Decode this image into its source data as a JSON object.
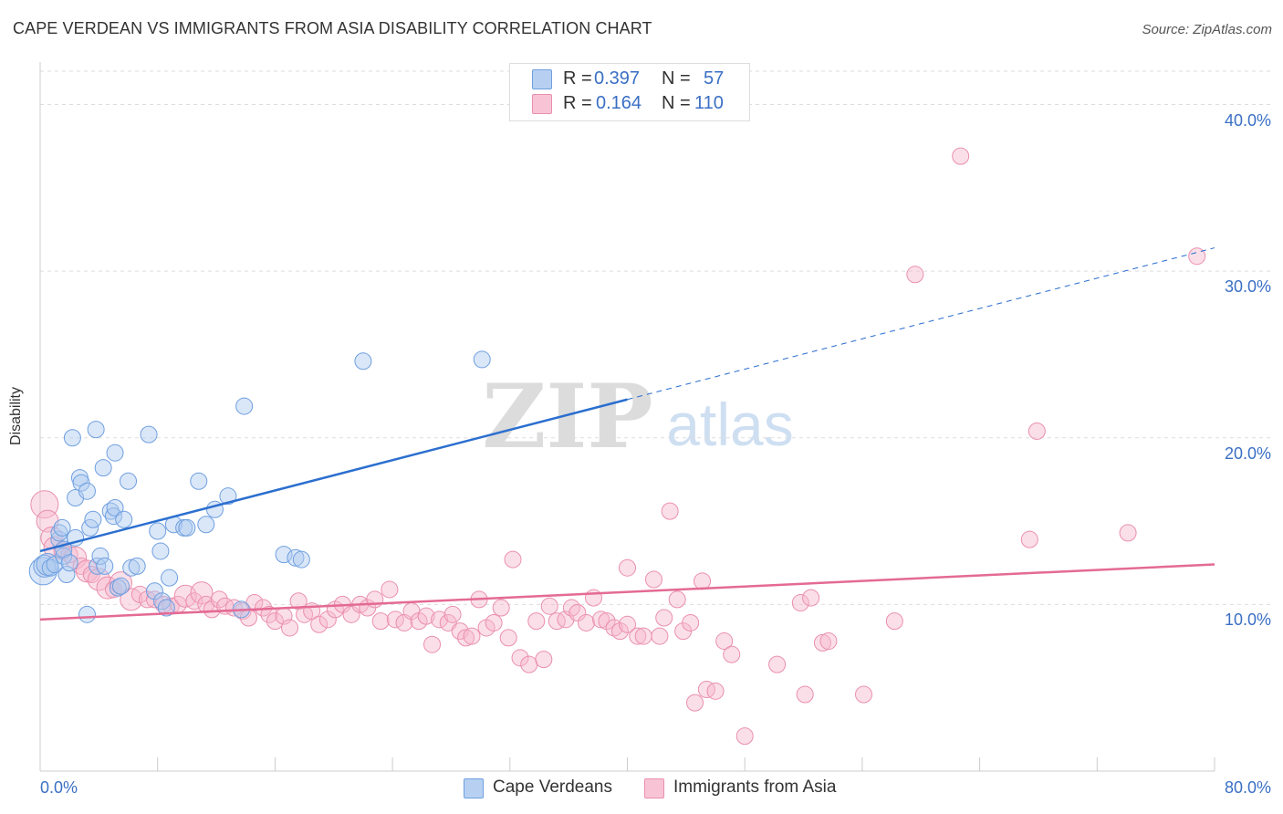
{
  "title": "CAPE VERDEAN VS IMMIGRANTS FROM ASIA DISABILITY CORRELATION CHART",
  "source": "Source: ZipAtlas.com",
  "watermark": {
    "zip": "ZIP",
    "atlas": "atlas"
  },
  "legend": {
    "rows": [
      {
        "r_label": "R =",
        "r_value": "0.397",
        "n_label": "N =",
        "n_value": "57"
      },
      {
        "r_label": "R =",
        "r_value": "0.164",
        "n_label": "N =",
        "n_value": "110"
      }
    ]
  },
  "bottom_legend": [
    "Cape Verdeans",
    "Immigrants from Asia"
  ],
  "x_axis_labels": {
    "left": "0.0%",
    "right": "80.0%"
  },
  "colors": {
    "blue": "#2b6fcf",
    "pink": "#e46a95",
    "blue_fill": "#aec9ef",
    "pink_fill": "#f6b8cc",
    "axis_text": "#3a6fc4"
  },
  "chart_data": {
    "type": "scatter",
    "title": "CAPE VERDEAN VS IMMIGRANTS FROM ASIA DISABILITY CORRELATION CHART",
    "xlabel": "",
    "ylabel": "Disability",
    "xlim": [
      0,
      80
    ],
    "ylim": [
      0,
      42
    ],
    "y_ticks": [
      10,
      20,
      30,
      40
    ],
    "y_tick_labels": [
      "10.0%",
      "20.0%",
      "30.0%",
      "40.0%"
    ],
    "grid": true,
    "legend_position": "top-center",
    "series": [
      {
        "name": "Cape Verdeans",
        "color": "#2b6fcf",
        "r": 0.397,
        "n": 57,
        "trend": {
          "x": [
            0,
            40
          ],
          "y": [
            13.2,
            22.3
          ],
          "dashed_extension": {
            "x": [
              40,
              80
            ],
            "y": [
              22.3,
              31.4
            ]
          }
        },
        "points": [
          [
            0.2,
            12.0,
            3
          ],
          [
            0.3,
            12.3,
            2
          ],
          [
            0.5,
            12.4,
            2
          ],
          [
            0.7,
            12.2,
            1
          ],
          [
            1.0,
            12.4,
            1
          ],
          [
            1.3,
            13.9,
            1
          ],
          [
            1.3,
            14.3,
            1
          ],
          [
            1.6,
            12.9,
            1
          ],
          [
            1.6,
            13.3,
            1
          ],
          [
            1.5,
            14.6,
            1
          ],
          [
            1.8,
            11.8,
            1
          ],
          [
            2.0,
            12.5,
            1
          ],
          [
            2.4,
            14.0,
            1
          ],
          [
            2.2,
            20.0,
            1
          ],
          [
            2.4,
            16.4,
            1
          ],
          [
            2.7,
            17.6,
            1
          ],
          [
            2.8,
            17.3,
            1
          ],
          [
            3.2,
            16.8,
            1
          ],
          [
            3.4,
            14.6,
            1
          ],
          [
            3.2,
            9.4,
            1
          ],
          [
            3.6,
            15.1,
            1
          ],
          [
            3.8,
            20.5,
            1
          ],
          [
            3.9,
            12.3,
            1
          ],
          [
            4.1,
            12.9,
            1
          ],
          [
            4.3,
            18.2,
            1
          ],
          [
            4.4,
            12.3,
            1
          ],
          [
            4.8,
            15.6,
            1
          ],
          [
            5.0,
            15.3,
            1
          ],
          [
            5.1,
            15.8,
            1
          ],
          [
            5.1,
            19.1,
            1
          ],
          [
            5.3,
            11.0,
            1
          ],
          [
            5.5,
            11.1,
            1
          ],
          [
            5.7,
            15.1,
            1
          ],
          [
            6.0,
            17.4,
            1
          ],
          [
            6.2,
            12.2,
            1
          ],
          [
            6.6,
            12.3,
            1
          ],
          [
            7.4,
            20.2,
            1
          ],
          [
            7.8,
            10.8,
            1
          ],
          [
            8.0,
            14.4,
            1
          ],
          [
            8.2,
            13.2,
            1
          ],
          [
            8.3,
            10.2,
            1
          ],
          [
            8.6,
            9.8,
            1
          ],
          [
            8.8,
            11.6,
            1
          ],
          [
            9.1,
            14.8,
            1
          ],
          [
            9.8,
            14.6,
            1
          ],
          [
            10.0,
            14.6,
            1
          ],
          [
            10.8,
            17.4,
            1
          ],
          [
            11.3,
            14.8,
            1
          ],
          [
            11.9,
            15.7,
            1
          ],
          [
            12.8,
            16.5,
            1
          ],
          [
            13.7,
            9.7,
            1
          ],
          [
            13.9,
            21.9,
            1
          ],
          [
            16.6,
            13.0,
            1
          ],
          [
            17.4,
            12.8,
            1
          ],
          [
            17.8,
            12.7,
            1
          ],
          [
            22.0,
            24.6,
            1
          ],
          [
            30.1,
            24.7,
            1
          ]
        ]
      },
      {
        "name": "Immigrants from Asia",
        "color": "#e46a95",
        "r": 0.164,
        "n": 110,
        "trend": {
          "x": [
            0,
            80
          ],
          "y": [
            9.1,
            12.4
          ]
        },
        "points": [
          [
            0.3,
            16.0,
            3
          ],
          [
            0.5,
            15.0,
            2
          ],
          [
            0.8,
            14.0,
            2
          ],
          [
            1.0,
            13.4,
            2
          ],
          [
            1.5,
            13.2,
            1
          ],
          [
            2.0,
            13.0,
            1
          ],
          [
            2.4,
            12.8,
            2
          ],
          [
            2.8,
            12.3,
            1
          ],
          [
            3.2,
            12.0,
            2
          ],
          [
            3.5,
            11.8,
            1
          ],
          [
            4.0,
            11.5,
            2
          ],
          [
            4.6,
            11.0,
            2
          ],
          [
            5.0,
            10.9,
            1
          ],
          [
            5.5,
            11.3,
            2
          ],
          [
            6.2,
            10.3,
            2
          ],
          [
            6.8,
            10.6,
            1
          ],
          [
            7.3,
            10.3,
            1
          ],
          [
            7.8,
            10.3,
            1
          ],
          [
            8.4,
            10.0,
            1
          ],
          [
            8.9,
            9.9,
            1
          ],
          [
            9.4,
            10.0,
            1
          ],
          [
            9.9,
            10.5,
            2
          ],
          [
            10.5,
            10.2,
            1
          ],
          [
            11.0,
            10.7,
            2
          ],
          [
            11.3,
            10.0,
            1
          ],
          [
            11.7,
            9.7,
            1
          ],
          [
            12.2,
            10.3,
            1
          ],
          [
            12.6,
            9.9,
            1
          ],
          [
            13.2,
            9.8,
            1
          ],
          [
            13.8,
            9.6,
            1
          ],
          [
            14.2,
            9.2,
            1
          ],
          [
            14.6,
            10.1,
            1
          ],
          [
            15.2,
            9.8,
            1
          ],
          [
            15.6,
            9.4,
            1
          ],
          [
            16.0,
            9.0,
            1
          ],
          [
            16.6,
            9.3,
            1
          ],
          [
            17.0,
            8.6,
            1
          ],
          [
            17.6,
            10.2,
            1
          ],
          [
            18.0,
            9.4,
            1
          ],
          [
            18.5,
            9.6,
            1
          ],
          [
            19.0,
            8.8,
            1
          ],
          [
            19.6,
            9.1,
            1
          ],
          [
            20.1,
            9.7,
            1
          ],
          [
            20.6,
            10.0,
            1
          ],
          [
            21.2,
            9.4,
            1
          ],
          [
            21.8,
            10.0,
            1
          ],
          [
            22.3,
            9.8,
            1
          ],
          [
            22.8,
            10.3,
            1
          ],
          [
            23.2,
            9.0,
            1
          ],
          [
            23.8,
            10.9,
            1
          ],
          [
            24.2,
            9.1,
            1
          ],
          [
            24.8,
            8.9,
            1
          ],
          [
            25.3,
            9.6,
            1
          ],
          [
            25.8,
            9.0,
            1
          ],
          [
            26.3,
            9.3,
            1
          ],
          [
            26.7,
            7.6,
            1
          ],
          [
            27.2,
            9.1,
            1
          ],
          [
            27.8,
            8.9,
            1
          ],
          [
            28.1,
            9.4,
            1
          ],
          [
            28.6,
            8.4,
            1
          ],
          [
            29.0,
            8.0,
            1
          ],
          [
            29.4,
            8.1,
            1
          ],
          [
            29.9,
            10.3,
            1
          ],
          [
            30.4,
            8.6,
            1
          ],
          [
            30.9,
            8.9,
            1
          ],
          [
            31.4,
            9.8,
            1
          ],
          [
            31.9,
            8.0,
            1
          ],
          [
            32.2,
            12.7,
            1
          ],
          [
            32.7,
            6.8,
            1
          ],
          [
            33.3,
            6.4,
            1
          ],
          [
            33.8,
            9.0,
            1
          ],
          [
            34.3,
            6.7,
            1
          ],
          [
            34.7,
            9.9,
            1
          ],
          [
            35.2,
            9.0,
            1
          ],
          [
            35.8,
            9.1,
            1
          ],
          [
            36.2,
            9.8,
            1
          ],
          [
            36.6,
            9.5,
            1
          ],
          [
            37.2,
            8.9,
            1
          ],
          [
            37.7,
            10.4,
            1
          ],
          [
            38.2,
            9.1,
            1
          ],
          [
            38.6,
            9.0,
            1
          ],
          [
            39.1,
            8.6,
            1
          ],
          [
            39.5,
            8.4,
            1
          ],
          [
            40.0,
            8.8,
            1
          ],
          [
            40.0,
            12.2,
            1
          ],
          [
            40.7,
            8.1,
            1
          ],
          [
            41.1,
            8.1,
            1
          ],
          [
            41.8,
            11.5,
            1
          ],
          [
            42.2,
            8.1,
            1
          ],
          [
            42.5,
            9.2,
            1
          ],
          [
            42.9,
            15.6,
            1
          ],
          [
            43.4,
            10.3,
            1
          ],
          [
            43.8,
            8.4,
            1
          ],
          [
            44.3,
            8.9,
            1
          ],
          [
            44.6,
            4.1,
            1
          ],
          [
            45.1,
            11.4,
            1
          ],
          [
            45.4,
            4.9,
            1
          ],
          [
            46.0,
            4.8,
            1
          ],
          [
            46.6,
            7.8,
            1
          ],
          [
            47.1,
            7.0,
            1
          ],
          [
            48.0,
            2.1,
            1
          ],
          [
            50.2,
            6.4,
            1
          ],
          [
            51.8,
            10.1,
            1
          ],
          [
            52.1,
            4.6,
            1
          ],
          [
            52.5,
            10.4,
            1
          ],
          [
            53.3,
            7.7,
            1
          ],
          [
            53.7,
            7.8,
            1
          ],
          [
            56.1,
            4.6,
            1
          ],
          [
            58.2,
            9.0,
            1
          ],
          [
            59.6,
            29.8,
            1
          ],
          [
            62.7,
            36.9,
            1
          ],
          [
            67.4,
            13.9,
            1
          ],
          [
            67.9,
            20.4,
            1
          ],
          [
            74.1,
            14.3,
            1
          ],
          [
            78.8,
            30.9,
            1
          ]
        ]
      }
    ]
  }
}
